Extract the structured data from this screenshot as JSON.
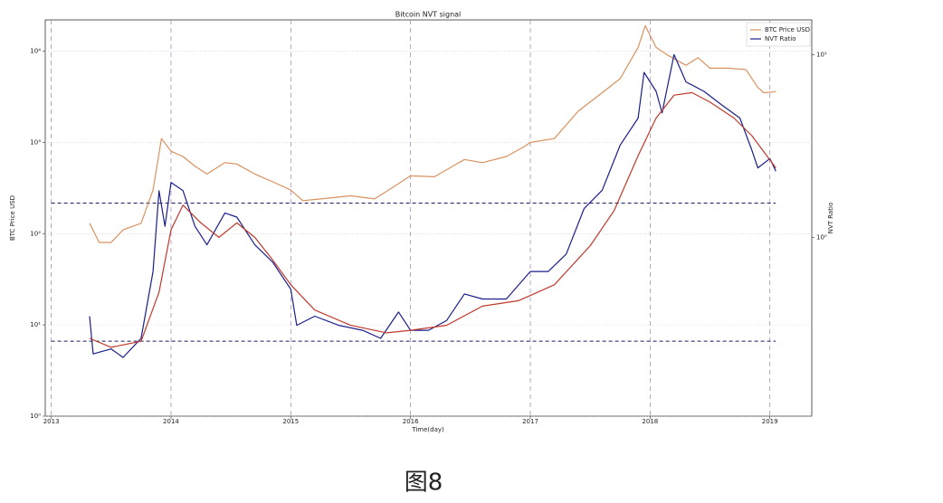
{
  "chart_data": {
    "type": "line",
    "title": "Bitcoin NVT signal",
    "xlabel": "Time(day)",
    "ylabel": "BTC Price USD",
    "y2label": "NVT Ratio",
    "caption": "图8",
    "log_scale": true,
    "grid": true,
    "legend": "upper right",
    "xlim": [
      2012.95,
      2019.35
    ],
    "xticks": [
      2013,
      2014,
      2015,
      2016,
      2017,
      2018,
      2019
    ],
    "ylim": [
      1,
      22000
    ],
    "yticks": [
      {
        "value": 1,
        "label": "10⁰"
      },
      {
        "value": 10,
        "label": "10¹"
      },
      {
        "value": 100,
        "label": "10²"
      },
      {
        "value": 1000,
        "label": "10³"
      },
      {
        "value": 10000,
        "label": "10⁴"
      }
    ],
    "y2lim": [
      0.105,
      15.5
    ],
    "y2ticks": [
      {
        "value": 1,
        "label": "10⁰"
      },
      {
        "value": 10,
        "label": "10¹"
      }
    ],
    "hlines": [
      1.54,
      0.27
    ],
    "series": [
      {
        "name": "BTC Price USD",
        "color": "#d9925f",
        "axis": "y",
        "x": [
          2013.32,
          2013.4,
          2013.5,
          2013.6,
          2013.75,
          2013.85,
          2013.92,
          2014.0,
          2014.1,
          2014.2,
          2014.3,
          2014.45,
          2014.55,
          2014.7,
          2014.85,
          2015.0,
          2015.1,
          2015.25,
          2015.5,
          2015.7,
          2015.85,
          2016.0,
          2016.2,
          2016.45,
          2016.6,
          2016.8,
          2016.95,
          2017.0,
          2017.2,
          2017.4,
          2017.6,
          2017.75,
          2017.9,
          2017.96,
          2018.05,
          2018.15,
          2018.3,
          2018.4,
          2018.5,
          2018.65,
          2018.8,
          2018.9,
          2018.95,
          2019.05
        ],
        "values": [
          130,
          80,
          80,
          110,
          130,
          300,
          1100,
          800,
          700,
          550,
          450,
          600,
          580,
          450,
          370,
          300,
          230,
          240,
          260,
          240,
          320,
          430,
          420,
          650,
          600,
          700,
          900,
          1000,
          1100,
          2200,
          3500,
          5000,
          11000,
          19000,
          11000,
          9000,
          7000,
          8500,
          6500,
          6500,
          6300,
          4000,
          3500,
          3600
        ]
      },
      {
        "name": "NVT Ratio",
        "color": "#1a1f8c",
        "axis": "y2",
        "x": [
          2013.32,
          2013.35,
          2013.5,
          2013.6,
          2013.75,
          2013.85,
          2013.9,
          2013.95,
          2014.0,
          2014.1,
          2014.2,
          2014.3,
          2014.45,
          2014.55,
          2014.7,
          2014.85,
          2015.0,
          2015.05,
          2015.2,
          2015.4,
          2015.6,
          2015.75,
          2015.9,
          2016.0,
          2016.15,
          2016.3,
          2016.45,
          2016.6,
          2016.8,
          2017.0,
          2017.15,
          2017.3,
          2017.45,
          2017.6,
          2017.75,
          2017.9,
          2017.95,
          2018.05,
          2018.1,
          2018.2,
          2018.3,
          2018.45,
          2018.6,
          2018.75,
          2018.85,
          2018.9,
          2019.0,
          2019.05
        ],
        "values": [
          0.37,
          0.23,
          0.245,
          0.22,
          0.28,
          0.65,
          1.8,
          1.15,
          2.0,
          1.8,
          1.15,
          0.91,
          1.36,
          1.29,
          0.91,
          0.73,
          0.52,
          0.33,
          0.37,
          0.33,
          0.31,
          0.28,
          0.39,
          0.31,
          0.31,
          0.35,
          0.49,
          0.46,
          0.46,
          0.65,
          0.65,
          0.81,
          1.44,
          1.81,
          3.2,
          4.5,
          8.0,
          6.3,
          4.8,
          10,
          7.1,
          6.3,
          5.3,
          4.5,
          3.0,
          2.4,
          2.7,
          2.3
        ]
      },
      {
        "color": "#c0392b",
        "axis": "y2",
        "x": [
          2013.32,
          2013.5,
          2013.75,
          2013.9,
          2014.0,
          2014.1,
          2014.25,
          2014.4,
          2014.55,
          2014.7,
          2014.85,
          2015.0,
          2015.2,
          2015.5,
          2015.8,
          2016.0,
          2016.3,
          2016.6,
          2016.9,
          2017.2,
          2017.5,
          2017.7,
          2017.9,
          2018.05,
          2018.2,
          2018.35,
          2018.5,
          2018.7,
          2018.85,
          2019.05
        ],
        "values": [
          0.28,
          0.25,
          0.27,
          0.5,
          1.1,
          1.5,
          1.2,
          1.0,
          1.2,
          1.0,
          0.75,
          0.55,
          0.4,
          0.33,
          0.3,
          0.31,
          0.33,
          0.42,
          0.45,
          0.55,
          0.9,
          1.4,
          2.8,
          4.5,
          6.0,
          6.2,
          5.5,
          4.5,
          3.6,
          2.4
        ]
      }
    ]
  }
}
